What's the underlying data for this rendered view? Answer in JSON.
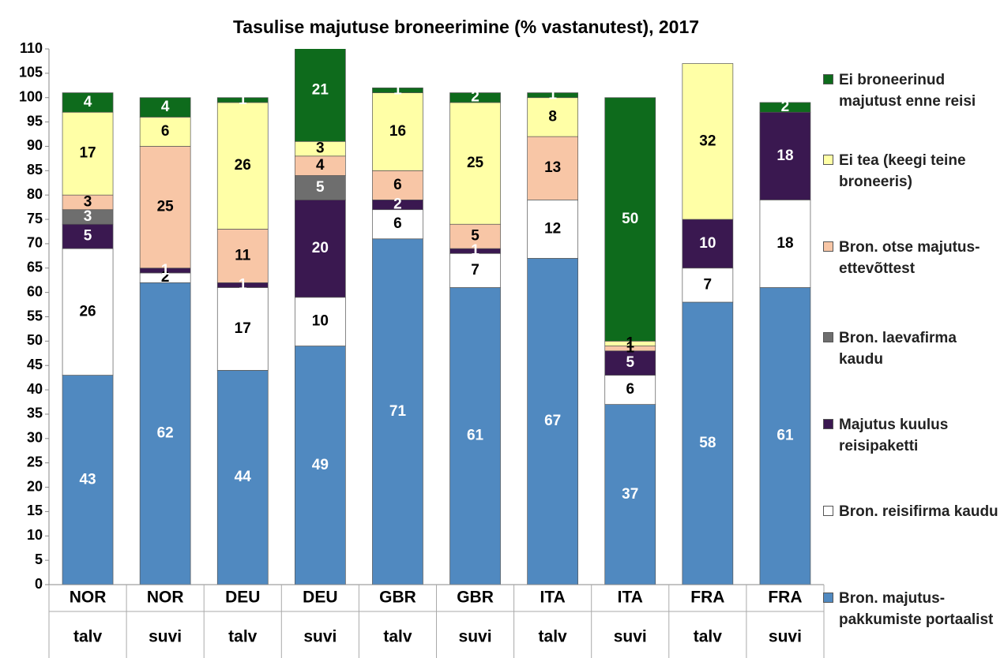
{
  "chart_data": {
    "type": "stacked_bar",
    "title": "Tasulise majutuse broneerimine (% vastanutest), 2017",
    "categories": [
      [
        "NOR",
        "talv"
      ],
      [
        "NOR",
        "suvi"
      ],
      [
        "DEU",
        "talv"
      ],
      [
        "DEU",
        "suvi"
      ],
      [
        "GBR",
        "talv"
      ],
      [
        "GBR",
        "suvi"
      ],
      [
        "ITA",
        "talv"
      ],
      [
        "ITA",
        "suvi"
      ],
      [
        "FRA",
        "talv"
      ],
      [
        "FRA",
        "suvi"
      ]
    ],
    "ylim": [
      0,
      110
    ],
    "yticks": [
      0,
      5,
      10,
      15,
      20,
      25,
      30,
      35,
      40,
      45,
      50,
      55,
      60,
      65,
      70,
      75,
      80,
      85,
      90,
      95,
      100,
      105,
      110
    ],
    "grid": false,
    "legend": "right",
    "series": [
      {
        "name": "Bron. majutus-pakkumiste portaalist",
        "color": "#5089c0",
        "label_color": "#ffffff",
        "values": [
          43,
          62,
          44,
          49,
          71,
          61,
          67,
          37,
          58,
          61
        ]
      },
      {
        "name": "Bron. reisifirma kaudu",
        "color": "#ffffff",
        "label_color": "#000000",
        "values": [
          26,
          2,
          17,
          10,
          6,
          7,
          12,
          6,
          7,
          18
        ]
      },
      {
        "name": "Majutus kuulus reisipaketti",
        "color": "#3a1850",
        "label_color": "#ffffff",
        "values": [
          5,
          1,
          1,
          20,
          2,
          1,
          0,
          5,
          10,
          18
        ]
      },
      {
        "name": "Bron. laevafirma kaudu",
        "color": "#6e6e6e",
        "label_color": "#ffffff",
        "values": [
          3,
          0,
          0,
          5,
          0,
          0,
          0,
          0,
          0,
          0
        ]
      },
      {
        "name": "Bron. otse majutus-ettevõttest",
        "color": "#f8c6a6",
        "label_color": "#000000",
        "values": [
          3,
          25,
          11,
          4,
          6,
          5,
          13,
          1,
          0,
          0
        ]
      },
      {
        "name": "Ei tea (keegi teine broneeris)",
        "color": "#ffffa6",
        "label_color": "#000000",
        "values": [
          17,
          6,
          26,
          3,
          16,
          25,
          8,
          1,
          32,
          0
        ]
      },
      {
        "name": "Ei broneerinud majutust enne reisi",
        "color": "#0e6b1c",
        "label_color": "#ffffff",
        "values": [
          4,
          4,
          1,
          21,
          1,
          2,
          1,
          50,
          0,
          2
        ]
      }
    ]
  }
}
